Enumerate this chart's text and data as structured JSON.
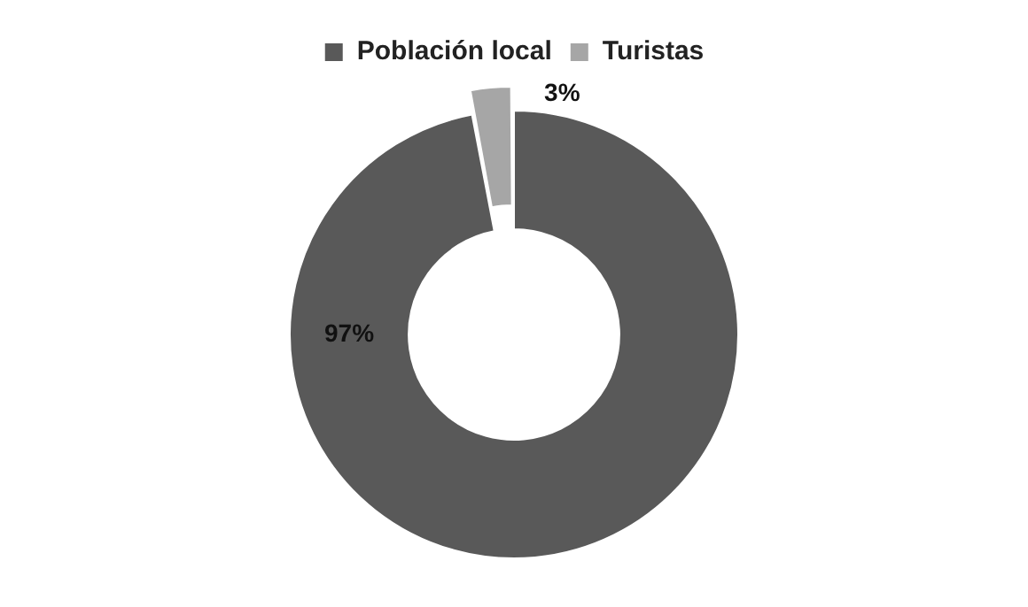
{
  "chart_data": {
    "type": "donut",
    "categories": [
      "Población local",
      "Turistas"
    ],
    "values": [
      97,
      3
    ],
    "colors": [
      "#595959",
      "#a6a6a6"
    ],
    "value_labels": [
      "97%",
      "3%"
    ],
    "legend": "top"
  }
}
